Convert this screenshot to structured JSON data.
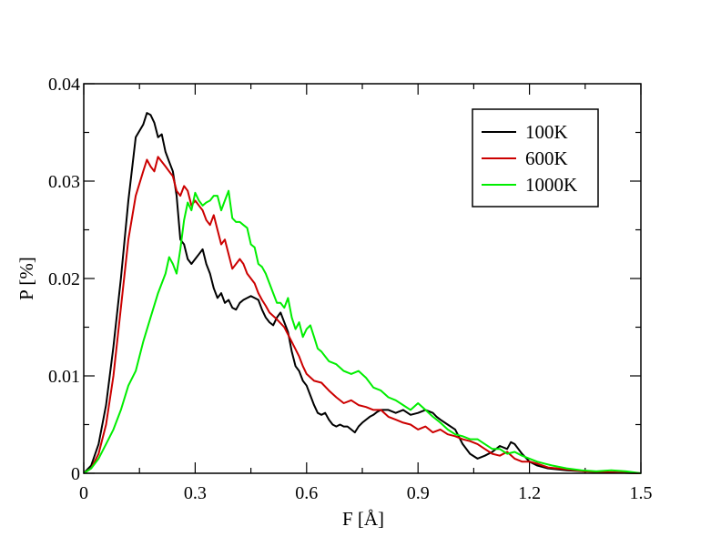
{
  "chart_data": {
    "type": "line",
    "xlabel": "F [Å]",
    "ylabel": "P [%]",
    "xlim": [
      0,
      1.5
    ],
    "ylim": [
      0,
      0.04
    ],
    "x_ticks": [
      0,
      0.3,
      0.6,
      0.9,
      1.2,
      1.5
    ],
    "x_tick_labels": [
      "0",
      "0.3",
      "0.6",
      "0.9",
      "1.2",
      "1.5"
    ],
    "y_ticks": [
      0,
      0.01,
      0.02,
      0.03,
      0.04
    ],
    "y_tick_labels": [
      "0",
      "0.01",
      "0.02",
      "0.03",
      "0.04"
    ],
    "grid": false,
    "legend_position": "top-right",
    "series": [
      {
        "name": "100K",
        "color": "#000000",
        "points": [
          [
            0,
            0
          ],
          [
            0.02,
            0.0008
          ],
          [
            0.04,
            0.003
          ],
          [
            0.06,
            0.007
          ],
          [
            0.08,
            0.013
          ],
          [
            0.1,
            0.02
          ],
          [
            0.12,
            0.028
          ],
          [
            0.14,
            0.0345
          ],
          [
            0.16,
            0.0358
          ],
          [
            0.17,
            0.037
          ],
          [
            0.18,
            0.0368
          ],
          [
            0.19,
            0.036
          ],
          [
            0.2,
            0.0345
          ],
          [
            0.21,
            0.0348
          ],
          [
            0.22,
            0.033
          ],
          [
            0.23,
            0.032
          ],
          [
            0.24,
            0.031
          ],
          [
            0.25,
            0.0285
          ],
          [
            0.26,
            0.024
          ],
          [
            0.27,
            0.0235
          ],
          [
            0.28,
            0.022
          ],
          [
            0.29,
            0.0215
          ],
          [
            0.3,
            0.022
          ],
          [
            0.31,
            0.0225
          ],
          [
            0.32,
            0.023
          ],
          [
            0.33,
            0.0215
          ],
          [
            0.34,
            0.0205
          ],
          [
            0.35,
            0.019
          ],
          [
            0.36,
            0.018
          ],
          [
            0.37,
            0.0185
          ],
          [
            0.38,
            0.0175
          ],
          [
            0.39,
            0.0178
          ],
          [
            0.4,
            0.017
          ],
          [
            0.41,
            0.0168
          ],
          [
            0.42,
            0.0175
          ],
          [
            0.43,
            0.0178
          ],
          [
            0.44,
            0.018
          ],
          [
            0.45,
            0.0182
          ],
          [
            0.46,
            0.018
          ],
          [
            0.47,
            0.0178
          ],
          [
            0.48,
            0.0168
          ],
          [
            0.49,
            0.016
          ],
          [
            0.5,
            0.0155
          ],
          [
            0.51,
            0.0152
          ],
          [
            0.52,
            0.016
          ],
          [
            0.53,
            0.0165
          ],
          [
            0.54,
            0.0155
          ],
          [
            0.55,
            0.0145
          ],
          [
            0.56,
            0.0125
          ],
          [
            0.57,
            0.011
          ],
          [
            0.58,
            0.0105
          ],
          [
            0.59,
            0.0095
          ],
          [
            0.6,
            0.009
          ],
          [
            0.61,
            0.008
          ],
          [
            0.62,
            0.007
          ],
          [
            0.63,
            0.0062
          ],
          [
            0.64,
            0.006
          ],
          [
            0.65,
            0.0062
          ],
          [
            0.66,
            0.0055
          ],
          [
            0.67,
            0.005
          ],
          [
            0.68,
            0.0048
          ],
          [
            0.69,
            0.005
          ],
          [
            0.7,
            0.0048
          ],
          [
            0.71,
            0.0048
          ],
          [
            0.72,
            0.0045
          ],
          [
            0.73,
            0.0042
          ],
          [
            0.74,
            0.0048
          ],
          [
            0.75,
            0.0052
          ],
          [
            0.76,
            0.0055
          ],
          [
            0.77,
            0.0058
          ],
          [
            0.78,
            0.006
          ],
          [
            0.79,
            0.0063
          ],
          [
            0.8,
            0.0065
          ],
          [
            0.82,
            0.0065
          ],
          [
            0.84,
            0.0062
          ],
          [
            0.86,
            0.0065
          ],
          [
            0.88,
            0.006
          ],
          [
            0.9,
            0.0062
          ],
          [
            0.92,
            0.0065
          ],
          [
            0.94,
            0.0062
          ],
          [
            0.95,
            0.0058
          ],
          [
            0.96,
            0.0055
          ],
          [
            0.98,
            0.005
          ],
          [
            1.0,
            0.0045
          ],
          [
            1.02,
            0.003
          ],
          [
            1.04,
            0.002
          ],
          [
            1.06,
            0.0015
          ],
          [
            1.08,
            0.0018
          ],
          [
            1.1,
            0.0022
          ],
          [
            1.12,
            0.0028
          ],
          [
            1.14,
            0.0025
          ],
          [
            1.15,
            0.0032
          ],
          [
            1.16,
            0.003
          ],
          [
            1.17,
            0.0025
          ],
          [
            1.18,
            0.002
          ],
          [
            1.2,
            0.0012
          ],
          [
            1.22,
            0.0008
          ],
          [
            1.25,
            0.0005
          ],
          [
            1.3,
            0.0003
          ],
          [
            1.35,
            0.0002
          ],
          [
            1.4,
            0.0001
          ],
          [
            1.5,
            0.0
          ]
        ]
      },
      {
        "name": "600K",
        "color": "#cc0000",
        "points": [
          [
            0,
            0
          ],
          [
            0.02,
            0.0005
          ],
          [
            0.04,
            0.002
          ],
          [
            0.06,
            0.005
          ],
          [
            0.08,
            0.01
          ],
          [
            0.1,
            0.017
          ],
          [
            0.12,
            0.024
          ],
          [
            0.14,
            0.0285
          ],
          [
            0.16,
            0.031
          ],
          [
            0.17,
            0.0322
          ],
          [
            0.18,
            0.0315
          ],
          [
            0.19,
            0.031
          ],
          [
            0.2,
            0.0325
          ],
          [
            0.21,
            0.032
          ],
          [
            0.22,
            0.0315
          ],
          [
            0.23,
            0.031
          ],
          [
            0.24,
            0.0305
          ],
          [
            0.25,
            0.029
          ],
          [
            0.26,
            0.0285
          ],
          [
            0.27,
            0.0295
          ],
          [
            0.28,
            0.029
          ],
          [
            0.29,
            0.0275
          ],
          [
            0.3,
            0.028
          ],
          [
            0.31,
            0.0275
          ],
          [
            0.32,
            0.027
          ],
          [
            0.33,
            0.026
          ],
          [
            0.34,
            0.0255
          ],
          [
            0.35,
            0.0265
          ],
          [
            0.36,
            0.025
          ],
          [
            0.37,
            0.0235
          ],
          [
            0.38,
            0.024
          ],
          [
            0.39,
            0.0225
          ],
          [
            0.4,
            0.021
          ],
          [
            0.41,
            0.0215
          ],
          [
            0.42,
            0.022
          ],
          [
            0.43,
            0.0215
          ],
          [
            0.44,
            0.0205
          ],
          [
            0.45,
            0.02
          ],
          [
            0.46,
            0.0195
          ],
          [
            0.47,
            0.0185
          ],
          [
            0.48,
            0.0178
          ],
          [
            0.49,
            0.0172
          ],
          [
            0.5,
            0.0165
          ],
          [
            0.52,
            0.0158
          ],
          [
            0.54,
            0.015
          ],
          [
            0.56,
            0.0135
          ],
          [
            0.58,
            0.012
          ],
          [
            0.59,
            0.011
          ],
          [
            0.6,
            0.0102
          ],
          [
            0.62,
            0.0095
          ],
          [
            0.64,
            0.0093
          ],
          [
            0.66,
            0.0085
          ],
          [
            0.68,
            0.0078
          ],
          [
            0.7,
            0.0072
          ],
          [
            0.72,
            0.0075
          ],
          [
            0.74,
            0.007
          ],
          [
            0.76,
            0.0068
          ],
          [
            0.78,
            0.0065
          ],
          [
            0.8,
            0.0065
          ],
          [
            0.82,
            0.0058
          ],
          [
            0.84,
            0.0055
          ],
          [
            0.86,
            0.0052
          ],
          [
            0.88,
            0.005
          ],
          [
            0.9,
            0.0045
          ],
          [
            0.92,
            0.0048
          ],
          [
            0.94,
            0.0042
          ],
          [
            0.96,
            0.0045
          ],
          [
            0.98,
            0.004
          ],
          [
            1.0,
            0.0038
          ],
          [
            1.02,
            0.0035
          ],
          [
            1.04,
            0.0033
          ],
          [
            1.06,
            0.003
          ],
          [
            1.08,
            0.0025
          ],
          [
            1.1,
            0.002
          ],
          [
            1.12,
            0.0018
          ],
          [
            1.14,
            0.0022
          ],
          [
            1.16,
            0.0015
          ],
          [
            1.18,
            0.0012
          ],
          [
            1.2,
            0.0012
          ],
          [
            1.22,
            0.001
          ],
          [
            1.25,
            0.0006
          ],
          [
            1.3,
            0.0004
          ],
          [
            1.35,
            0.0002
          ],
          [
            1.4,
            0.0001
          ],
          [
            1.5,
            0.0
          ]
        ]
      },
      {
        "name": "1000K",
        "color": "#00ee00",
        "points": [
          [
            0,
            0
          ],
          [
            0.02,
            0.0005
          ],
          [
            0.04,
            0.0015
          ],
          [
            0.06,
            0.003
          ],
          [
            0.08,
            0.0045
          ],
          [
            0.1,
            0.0065
          ],
          [
            0.12,
            0.009
          ],
          [
            0.14,
            0.0105
          ],
          [
            0.16,
            0.0135
          ],
          [
            0.18,
            0.016
          ],
          [
            0.2,
            0.0185
          ],
          [
            0.22,
            0.0205
          ],
          [
            0.23,
            0.0222
          ],
          [
            0.24,
            0.0215
          ],
          [
            0.25,
            0.0205
          ],
          [
            0.26,
            0.023
          ],
          [
            0.27,
            0.026
          ],
          [
            0.28,
            0.0278
          ],
          [
            0.29,
            0.027
          ],
          [
            0.3,
            0.0288
          ],
          [
            0.31,
            0.028
          ],
          [
            0.32,
            0.0275
          ],
          [
            0.33,
            0.0278
          ],
          [
            0.34,
            0.028
          ],
          [
            0.35,
            0.0285
          ],
          [
            0.36,
            0.0285
          ],
          [
            0.37,
            0.027
          ],
          [
            0.38,
            0.028
          ],
          [
            0.39,
            0.029
          ],
          [
            0.4,
            0.0262
          ],
          [
            0.41,
            0.0258
          ],
          [
            0.42,
            0.0258
          ],
          [
            0.43,
            0.0255
          ],
          [
            0.44,
            0.0252
          ],
          [
            0.45,
            0.0235
          ],
          [
            0.46,
            0.0232
          ],
          [
            0.47,
            0.0215
          ],
          [
            0.48,
            0.0212
          ],
          [
            0.49,
            0.0205
          ],
          [
            0.5,
            0.0195
          ],
          [
            0.51,
            0.0185
          ],
          [
            0.52,
            0.0175
          ],
          [
            0.53,
            0.0175
          ],
          [
            0.54,
            0.017
          ],
          [
            0.55,
            0.018
          ],
          [
            0.56,
            0.016
          ],
          [
            0.57,
            0.0148
          ],
          [
            0.58,
            0.0155
          ],
          [
            0.59,
            0.014
          ],
          [
            0.6,
            0.0148
          ],
          [
            0.61,
            0.0152
          ],
          [
            0.62,
            0.014
          ],
          [
            0.63,
            0.0128
          ],
          [
            0.64,
            0.0125
          ],
          [
            0.65,
            0.012
          ],
          [
            0.66,
            0.0115
          ],
          [
            0.68,
            0.0112
          ],
          [
            0.7,
            0.0105
          ],
          [
            0.72,
            0.0102
          ],
          [
            0.74,
            0.0105
          ],
          [
            0.76,
            0.0098
          ],
          [
            0.78,
            0.0088
          ],
          [
            0.8,
            0.0085
          ],
          [
            0.82,
            0.0078
          ],
          [
            0.84,
            0.0075
          ],
          [
            0.86,
            0.007
          ],
          [
            0.88,
            0.0065
          ],
          [
            0.9,
            0.0072
          ],
          [
            0.92,
            0.0065
          ],
          [
            0.94,
            0.0058
          ],
          [
            0.96,
            0.0052
          ],
          [
            0.98,
            0.0045
          ],
          [
            1.0,
            0.004
          ],
          [
            1.02,
            0.0038
          ],
          [
            1.04,
            0.0035
          ],
          [
            1.06,
            0.0035
          ],
          [
            1.08,
            0.003
          ],
          [
            1.1,
            0.0025
          ],
          [
            1.12,
            0.0025
          ],
          [
            1.14,
            0.002
          ],
          [
            1.16,
            0.0022
          ],
          [
            1.18,
            0.0018
          ],
          [
            1.2,
            0.0015
          ],
          [
            1.22,
            0.0012
          ],
          [
            1.24,
            0.001
          ],
          [
            1.26,
            0.0008
          ],
          [
            1.3,
            0.0005
          ],
          [
            1.34,
            0.0003
          ],
          [
            1.38,
            0.0002
          ],
          [
            1.42,
            0.0003
          ],
          [
            1.46,
            0.0002
          ],
          [
            1.5,
            0.0
          ]
        ]
      }
    ]
  }
}
